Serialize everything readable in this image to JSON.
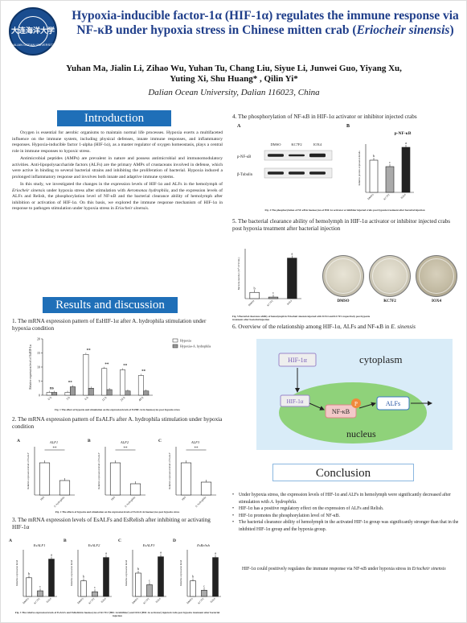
{
  "header": {
    "logo_text": "大连海洋大学",
    "logo_ring_text": "DALIAN OCEAN UNIVERSITY",
    "title": "Hypoxia-inducible factor-1α (HIF-1α) regulates the immune response via NF-κB under hypoxia stress in Chinese mitten crab (",
    "title_species": "Eriocheir sinensis",
    "title_close": ")",
    "authors_line1": "Yuhan Ma, Jialin Li, Zihao Wu, Yuhan Tu, Chang Liu, Siyue Li, Junwei Guo, Yiyang Xu,",
    "authors_line2": "Yuting Xi, Shu Huang* , Qilin Yi*",
    "affiliation": "Dalian Ocean University, Dalian 116023, China"
  },
  "intro": {
    "heading": "Introduction",
    "p1": "Oxygen is essential for aerobic organisms to maintain normal life processes. Hypoxia exerts a multifaceted influence on the immune system, including physical defenses, innate immune responses, and inflammatory responses. Hypoxia-inducible factor 1-alpha (HIF-1α), as a master regulator of oxygen homeostasis, plays a central role in immune responses to hypoxic stress.",
    "p2": "Antimicrobial peptides (AMPs) are prevalent in nature and possess antimicrobial and immunomodulatory activities. Anti-lipopolysaccharide factors (ALFs) are the primary AMPs of crustaceans involved in defense, which were active in binding to several bacterial strains and inhibiting the proliferation of bacterial. Hypoxia induced a prolonged inflammatory response and involves both innate and adaptive immune systems.",
    "p3a": "In this study, we investigated the changes in the expression levels of HIF-1α and ALFs in the hemolymph of ",
    "p3_species": "Eriocheir sinensis",
    "p3b": " under hypoxia stress after stimulation with ",
    "p3_bact": "Aeromonas hydrophila",
    "p3c": ", and the expression levels of ALFs and Relish, the phosphorylation level of NF-κB and the bacterial clearance ability of hemolymph after inhibition or activation of HIF-1α. On this basis, we explored the immune response mechanism of HIF-1α in response to pathogen stimulation under hypoxia stress in ",
    "p3_species2": "Eriocheir sinensis",
    "p3d": "."
  },
  "results": {
    "heading": "Results and discussion",
    "s1_title": "1. The mRNA expression pattern of EsHIF-1α after A. hydrophila stimulation under hypoxia condition",
    "s1_caption": "Fig. 1 The effect of hypoxia and stimulation on the expression levels of EsHIF-1α in haemocytes post hypoxia stress",
    "s2_title": "2. The mRNA expression pattern of EsALFs after A. hydrophila stimulation under hypoxia condition",
    "s2_caption": "Fig. 2 The effects of hypoxia and stimulation on the expression levels of EsALFs in haemocytes post hypoxia stress",
    "s3_title": "3. The mRNA expression levels of EsALFs and EsRelish after inhibiting or activating HIF-1α",
    "s3_caption": "Fig. 3 The relative expression levels of EsALFs and EsRelish in haemocytes of KC7F2 (HIF-1α inhibitor) and IOX4 (HIF-1α activator) injected crabs post hypoxia treatment after bacterial injection",
    "s4_title": "4. The phosphorylation of NF-κB in HIF-1α activator or inhibitor injected crabs",
    "s4_caption": "Fig. 4 The phosphorylation of NF-κB in haemocytes of HIF-1α activator or inhibitor injected crabs post hypoxia treatment after bacterial injection",
    "s5_title": "5. The bacterial clearance ability of hemolymph in HIF-1α activator or inhibitor injected crabs post hypoxia treatment after bacterial injection",
    "s5_caption": "Fig. 5 Bacterial clearance ability of hemolymph in Eriocheir sinensis injected with IOX4 and KC7F2 respectively post hypoxia treatment after bacterial injection",
    "s6_title": "6. Overview of the relationship among HIF-1α, ALFs and NF-κB in ",
    "s6_species": "E. sinensis"
  },
  "fig1": {
    "ylabel": "Relative expression level of EsHIF-1α",
    "legend": [
      "Hypoxia",
      "Hypoxia+A. hydrophila"
    ],
    "yticks": [
      "0",
      "5",
      "10",
      "15",
      "20"
    ]
  },
  "fig2": {
    "panel_letters": [
      "A",
      "B",
      "C"
    ],
    "titles": [
      "ALF1",
      "ALF2",
      "ALF3"
    ],
    "ylabel": "Relative expression level of EsALF"
  },
  "fig3": {
    "panel_letters": [
      "A",
      "B",
      "C",
      "D"
    ],
    "titles": [
      "EsALF1",
      "EsALF2",
      "EsALF3",
      "EsRelish"
    ],
    "ylabel": "Relative expression level"
  },
  "fig4": {
    "panel_a": "A",
    "panel_b": "B",
    "blot_cols": [
      "DMSO",
      "KC7F2",
      "IOX4"
    ],
    "blot_rows": [
      "p-NF-κB",
      "β-Tubulin"
    ],
    "chart_title": "p-NF-κB",
    "ylabel": "Relative protein expression levels"
  },
  "fig5": {
    "ylabel": "Bacteria number (10⁵ CFU/mL)",
    "dish_labels": [
      "DMSO",
      "KC7F2",
      "IOX4"
    ]
  },
  "fig6": {
    "cytoplasm": "cytoplasm",
    "nucleus": "nucleus",
    "hif_top": "HIF-1α",
    "hif_inner": "HIF-1α",
    "nfkb": "NF-κB",
    "p": "P",
    "alfs": "ALFs"
  },
  "conclusion": {
    "heading": "Conclusion",
    "b1a": "Under hypoxia stress, the expression levels of HIF-1α and ALFs in hemolymph were significantly decreased after stimulation with ",
    "b1_bact": "A. hydrophila",
    "b1b": ".",
    "b2": "HIF-1α has a positive regulatory effect on the expression of ALFs and Relish.",
    "b3": "HIF-1α promotes the phosphorylation level of NF-κB.",
    "b4": "The bacterial clearance ability of hemolymph in the activated HIF-1α group was significantly stronger than that in the inhibited HIF-1α group and the hypoxia group.",
    "closing_a": "HIF-1α could positively regulates the immune response via NF-κB under hypoxia stress in ",
    "closing_species": "Eriocheir sinensis"
  },
  "chart_data": [
    {
      "type": "bar",
      "title": "",
      "ylabel": "Relative expression level of EsHIF-1α",
      "categories": [
        "0 h",
        "3 h",
        "6 h",
        "12 h",
        "24 h",
        "48 h"
      ],
      "series": [
        {
          "name": "Hypoxia",
          "values": [
            1.0,
            1.0,
            14.5,
            9.5,
            9.0,
            7.0
          ]
        },
        {
          "name": "Hypoxia+A. hydrophila",
          "values": [
            1.0,
            3.0,
            2.5,
            2.0,
            1.5,
            1.5
          ]
        }
      ],
      "significance": [
        "ns",
        "**",
        "**",
        "**",
        "**",
        "**"
      ],
      "ylim": [
        0,
        20
      ]
    },
    {
      "type": "bar",
      "title": "ALF1",
      "categories": [
        "PBS",
        "A. hydrophila"
      ],
      "values": [
        1.0,
        0.45
      ],
      "significance": "**",
      "ylim": [
        0,
        1.5
      ]
    },
    {
      "type": "bar",
      "title": "ALF2",
      "categories": [
        "PBS",
        "A. hydrophila"
      ],
      "values": [
        1.0,
        0.35
      ],
      "significance": "**",
      "ylim": [
        0,
        1.5
      ]
    },
    {
      "type": "bar",
      "title": "ALF3",
      "categories": [
        "PBS",
        "A. hydrophila"
      ],
      "values": [
        1.0,
        0.4
      ],
      "significance": "**",
      "ylim": [
        0,
        1.5
      ]
    },
    {
      "type": "bar",
      "title": "EsALF1",
      "categories": [
        "DMSO",
        "KC7F2",
        "IOX4"
      ],
      "values": [
        1.0,
        0.3,
        2.0
      ],
      "letters": [
        "b",
        "c",
        "a"
      ],
      "ylim": [
        0,
        2.5
      ]
    },
    {
      "type": "bar",
      "title": "EsALF2",
      "categories": [
        "DMSO",
        "KC7F2",
        "IOX4"
      ],
      "values": [
        1.0,
        0.3,
        2.5
      ],
      "letters": [
        "b",
        "c",
        "a"
      ],
      "ylim": [
        0,
        3
      ]
    },
    {
      "type": "bar",
      "title": "EsALF3",
      "categories": [
        "DMSO",
        "KC7F2",
        "IOX4"
      ],
      "values": [
        1.0,
        0.5,
        1.7
      ],
      "letters": [
        "b",
        "c",
        "a"
      ],
      "ylim": [
        0,
        2
      ]
    },
    {
      "type": "bar",
      "title": "EsRelish",
      "categories": [
        "DMSO",
        "KC7F2",
        "IOX4"
      ],
      "values": [
        1.0,
        0.4,
        2.5
      ],
      "letters": [
        "b",
        "c",
        "a"
      ],
      "ylim": [
        0,
        3
      ]
    },
    {
      "type": "bar",
      "title": "p-NF-κB",
      "ylabel": "Relative protein expression levels",
      "categories": [
        "DMSO",
        "KC7F2",
        "IOX4"
      ],
      "values": [
        1.0,
        0.8,
        1.4
      ],
      "letters": [
        "b",
        "c",
        "a"
      ],
      "ylim": [
        0,
        1.5
      ]
    },
    {
      "type": "bar",
      "ylabel": "Bacteria number (10⁵ CFU/mL)",
      "categories": [
        "DMSO",
        "KC7F2",
        "IOX4"
      ],
      "values": [
        0.2,
        0.05,
        1.3
      ],
      "letters": [
        "b",
        "c",
        "a"
      ],
      "ylim": [
        0,
        1.6
      ]
    }
  ]
}
